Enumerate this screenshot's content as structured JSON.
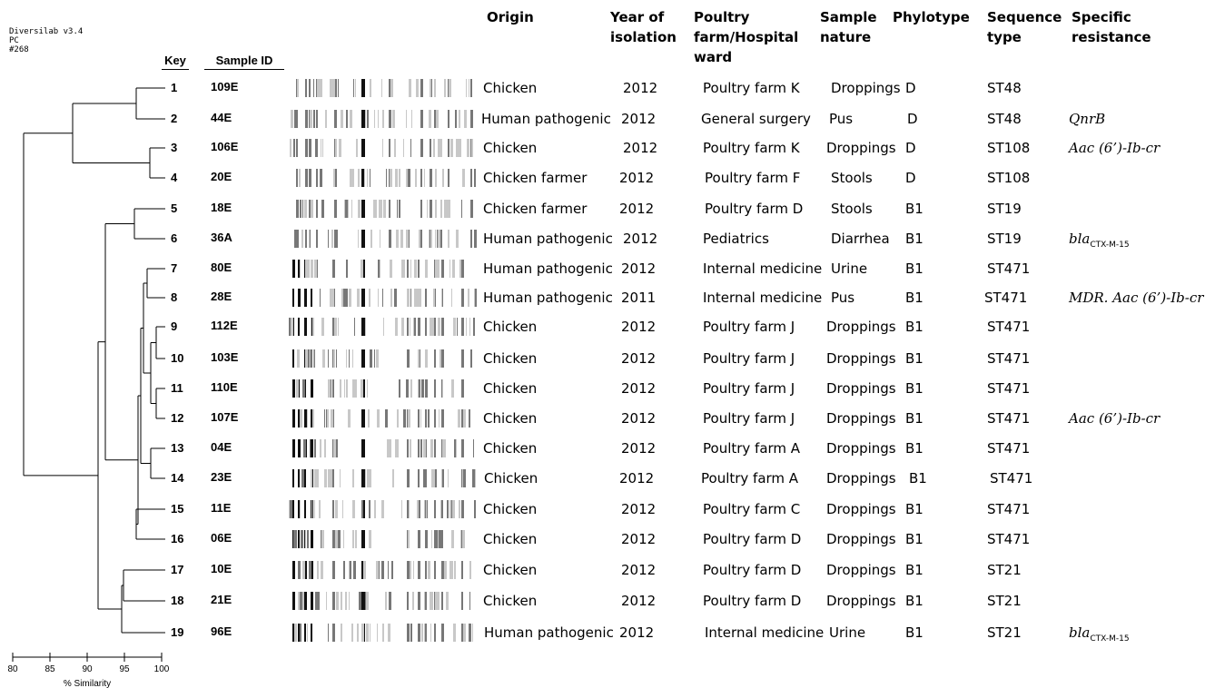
{
  "software": {
    "line1": "Diversilab v3.4",
    "line2": "PC",
    "line3": "#268"
  },
  "headers": {
    "key": "Key",
    "sample_id": "Sample ID",
    "origin": "Origin",
    "year": [
      "Year of",
      "isolation"
    ],
    "farm": [
      "Poultry",
      "farm/Hospital",
      "ward"
    ],
    "nature": [
      "Sample",
      "nature"
    ],
    "phylotype": "Phylotype",
    "sequence": [
      "Sequence",
      "type"
    ],
    "resistance": [
      "Specific",
      "resistance"
    ]
  },
  "rows": [
    {
      "key": "1",
      "id": "109E",
      "origin": "Chicken",
      "year": "2012",
      "farm": "Poultry farm K",
      "nature": "Droppings",
      "phylo": "D",
      "st": "ST48",
      "res": ""
    },
    {
      "key": "2",
      "id": "44E",
      "origin": "Human pathogenic",
      "year": "2012",
      "farm": "General surgery",
      "nature": "Pus",
      "phylo": "D",
      "st": "ST48",
      "res": "QnrB"
    },
    {
      "key": "3",
      "id": "106E",
      "origin": "Chicken",
      "year": "2012",
      "farm": "Poultry farm K",
      "nature": "Droppings",
      "phylo": "D",
      "st": "ST108",
      "res": "Aac (6’)-Ib-cr"
    },
    {
      "key": "4",
      "id": "20E",
      "origin": "Chicken farmer",
      "year": "2012",
      "farm": "Poultry farm F",
      "nature": "Stools",
      "phylo": "D",
      "st": "ST108",
      "res": ""
    },
    {
      "key": "5",
      "id": "18E",
      "origin": "Chicken farmer",
      "year": "2012",
      "farm": "Poultry farm D",
      "nature": "Stools",
      "phylo": "B1",
      "st": "ST19",
      "res": ""
    },
    {
      "key": "6",
      "id": "36A",
      "origin": "Human pathogenic",
      "year": "2012",
      "farm": "Pediatrics",
      "nature": "Diarrhea",
      "phylo": "B1",
      "st": "ST19",
      "res": "bla",
      "res_sub": "CTX-M-15"
    },
    {
      "key": "7",
      "id": "80E",
      "origin": "Human pathogenic",
      "year": "2012",
      "farm": "Internal medicine",
      "nature": "Urine",
      "phylo": "B1",
      "st": "ST471",
      "res": ""
    },
    {
      "key": "8",
      "id": "28E",
      "origin": "Human pathogenic",
      "year": "2011",
      "farm": "Internal medicine",
      "nature": "Pus",
      "phylo": "B1",
      "st": "ST471",
      "res": "MDR. Aac (6’)-Ib-cr"
    },
    {
      "key": "9",
      "id": "112E",
      "origin": "Chicken",
      "year": "2012",
      "farm": "Poultry farm J",
      "nature": "Droppings",
      "phylo": "B1",
      "st": "ST471",
      "res": ""
    },
    {
      "key": "10",
      "id": "103E",
      "origin": "Chicken",
      "year": "2012",
      "farm": "Poultry farm J",
      "nature": "Droppings",
      "phylo": "B1",
      "st": "ST471",
      "res": ""
    },
    {
      "key": "11",
      "id": "110E",
      "origin": "Chicken",
      "year": "2012",
      "farm": "Poultry farm J",
      "nature": "Droppings",
      "phylo": "B1",
      "st": "ST471",
      "res": ""
    },
    {
      "key": "12",
      "id": "107E",
      "origin": "Chicken",
      "year": "2012",
      "farm": "Poultry farm J",
      "nature": "Droppings",
      "phylo": "B1",
      "st": "ST471",
      "res": "Aac (6’)-Ib-cr"
    },
    {
      "key": "13",
      "id": "04E",
      "origin": "Chicken",
      "year": "2012",
      "farm": "Poultry farm A",
      "nature": "Droppings",
      "phylo": "B1",
      "st": "ST471",
      "res": ""
    },
    {
      "key": "14",
      "id": "23E",
      "origin": "Chicken",
      "year": "2012",
      "farm": "Poultry farm A",
      "nature": "Droppings",
      "phylo": "B1",
      "st": "ST471",
      "res": ""
    },
    {
      "key": "15",
      "id": "11E",
      "origin": "Chicken",
      "year": "2012",
      "farm": "Poultry farm C",
      "nature": "Droppings",
      "phylo": "B1",
      "st": "ST471",
      "res": ""
    },
    {
      "key": "16",
      "id": "06E",
      "origin": "Chicken",
      "year": "2012",
      "farm": "Poultry farm D",
      "nature": "Droppings",
      "phylo": "B1",
      "st": "ST471",
      "res": ""
    },
    {
      "key": "17",
      "id": "10E",
      "origin": "Chicken",
      "year": "2012",
      "farm": "Poultry farm D",
      "nature": "Droppings",
      "phylo": "B1",
      "st": "ST21",
      "res": ""
    },
    {
      "key": "18",
      "id": "21E",
      "origin": "Chicken",
      "year": "2012",
      "farm": "Poultry farm D",
      "nature": "Droppings",
      "phylo": "B1",
      "st": "ST21",
      "res": ""
    },
    {
      "key": "19",
      "id": "96E",
      "origin": "Human pathogenic",
      "year": "2012",
      "farm": "Internal medicine",
      "nature": "Urine",
      "phylo": "B1",
      "st": "ST21",
      "res": "bla",
      "res_sub": "CTX-M-15"
    }
  ],
  "axis": {
    "title": "% Similarity",
    "ticks": [
      "80",
      "85",
      "90",
      "95",
      "100"
    ],
    "range": [
      80,
      100
    ]
  },
  "dendrogram": {
    "merges": [
      {
        "a": 1,
        "b": 2,
        "sim": 96.5
      },
      {
        "a": 3,
        "b": 4,
        "sim": 98.2
      },
      {
        "a": 13,
        "b": 14,
        "sim": 97.6
      },
      {
        "a": 15,
        "b": 16,
        "sim": 96.7
      },
      {
        "a": 9,
        "b": 10,
        "sim": 98.2
      },
      {
        "a": 11,
        "b": 12,
        "sim": 98.2
      },
      {
        "a": 17,
        "b": 18,
        "sim": 95.0
      },
      {
        "a": 5,
        "b": 6,
        "sim": 96.5
      }
    ]
  },
  "colors": {
    "band_dark": "#111111",
    "band_mid": "#777777",
    "band_light": "#c8c8c8",
    "line": "#000000"
  }
}
